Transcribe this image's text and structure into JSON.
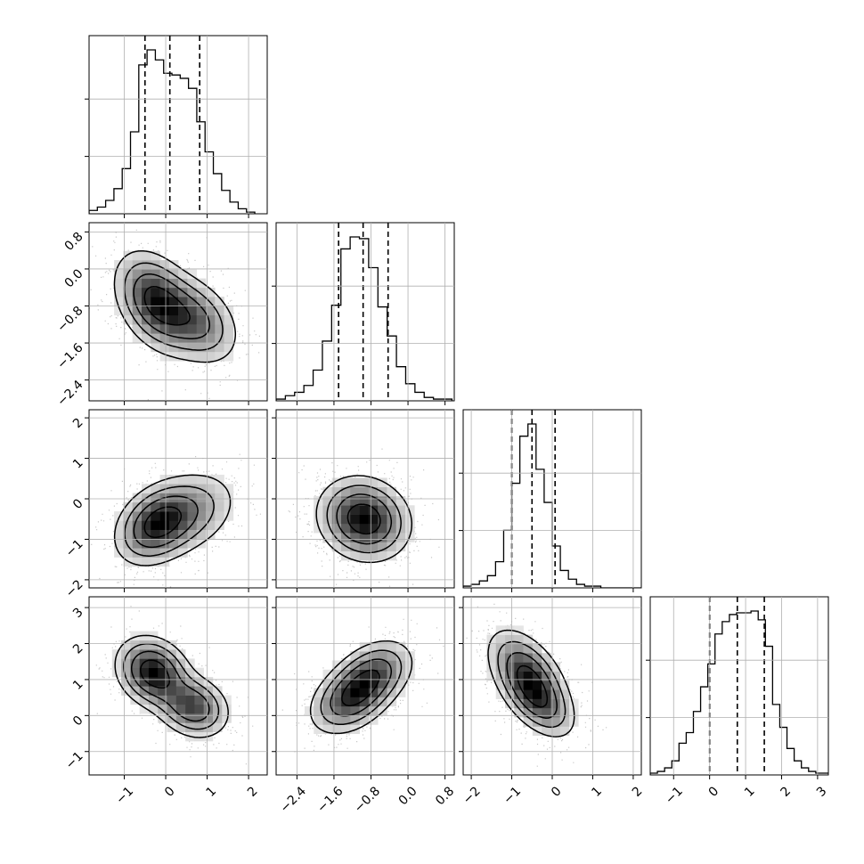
{
  "chart_data": {
    "type": "corner",
    "title": "",
    "n_params": 4,
    "params": [
      {
        "range": [
          -1.85,
          2.45
        ],
        "ticks": [
          -1,
          0,
          1,
          2
        ],
        "tick_labels": [
          "−1",
          "0",
          "1",
          "2"
        ],
        "histogram": {
          "edges_start": -1.85,
          "bin_width": 0.2,
          "counts": [
            0.02,
            0.04,
            0.08,
            0.15,
            0.27,
            0.49,
            0.89,
            0.98,
            0.92,
            0.84,
            0.83,
            0.81,
            0.75,
            0.55,
            0.37,
            0.24,
            0.14,
            0.07,
            0.03,
            0.01
          ]
        },
        "quantiles": [
          -0.5,
          0.1,
          0.82
        ]
      },
      {
        "range": [
          -2.85,
          1.0
        ],
        "ticks": [
          -2.4,
          -1.6,
          -0.8,
          0.0,
          0.8
        ],
        "tick_labels": [
          "−2.4",
          "−1.6",
          "−0.8",
          "0.0",
          "0.8"
        ],
        "histogram": {
          "edges_start": -2.85,
          "bin_width": 0.2,
          "counts": [
            0.01,
            0.03,
            0.05,
            0.09,
            0.18,
            0.35,
            0.56,
            0.89,
            0.96,
            0.95,
            0.78,
            0.55,
            0.38,
            0.2,
            0.1,
            0.05,
            0.02,
            0.01,
            0.01
          ]
        },
        "quantiles": [
          -1.5,
          -0.97,
          -0.43
        ]
      },
      {
        "range": [
          -2.2,
          2.2
        ],
        "ticks": [
          -2,
          -1,
          0,
          1,
          2
        ],
        "tick_labels": [
          "−2",
          "−1",
          "0",
          "1",
          "2"
        ],
        "histogram": {
          "edges_start": -2.2,
          "bin_width": 0.2,
          "counts": [
            0.01,
            0.02,
            0.04,
            0.07,
            0.15,
            0.33,
            0.6,
            0.87,
            0.94,
            0.68,
            0.49,
            0.24,
            0.1,
            0.05,
            0.02,
            0.01,
            0.01,
            0,
            0,
            0,
            0,
            0
          ]
        },
        "quantiles": [
          -1.0,
          -0.5,
          0.07
        ]
      },
      {
        "range": [
          -1.65,
          3.3
        ],
        "ticks": [
          -1,
          0,
          1,
          2,
          3
        ],
        "tick_labels": [
          "−1",
          "0",
          "1",
          "2",
          "3"
        ],
        "histogram": {
          "edges_start": -1.65,
          "bin_width": 0.2,
          "counts": [
            0.01,
            0.02,
            0.04,
            0.08,
            0.18,
            0.24,
            0.36,
            0.5,
            0.63,
            0.8,
            0.87,
            0.91,
            0.92,
            0.92,
            0.93,
            0.88,
            0.73,
            0.4,
            0.27,
            0.15,
            0.08,
            0.04,
            0.02,
            0.01,
            0.01
          ]
        },
        "quantiles": [
          0.0,
          0.77,
          1.52
        ]
      }
    ],
    "pairs": [
      {
        "row": 1,
        "col": 0,
        "modes": [
          [
            -0.25,
            -0.7,
            0.5,
            0.55,
            1.0
          ],
          [
            0.7,
            -1.1,
            0.55,
            0.5,
            0.7
          ]
        ],
        "rho": -0.35
      },
      {
        "row": 2,
        "col": 0,
        "modes": [
          [
            -0.25,
            -0.65,
            0.5,
            0.5,
            1.0
          ],
          [
            0.5,
            -0.35,
            0.65,
            0.55,
            0.6
          ]
        ],
        "rho": 0.3
      },
      {
        "row": 2,
        "col": 1,
        "modes": [
          [
            -0.95,
            -0.5,
            0.5,
            0.52,
            1.0
          ]
        ],
        "rho": -0.12
      },
      {
        "row": 3,
        "col": 0,
        "modes": [
          [
            -0.3,
            1.2,
            0.45,
            0.5,
            1.0
          ],
          [
            0.65,
            0.25,
            0.45,
            0.45,
            0.75
          ]
        ],
        "rho": -0.2
      },
      {
        "row": 3,
        "col": 1,
        "modes": [
          [
            -0.75,
            1.15,
            0.45,
            0.5,
            0.9
          ],
          [
            -1.25,
            0.45,
            0.45,
            0.5,
            1.0
          ]
        ],
        "rho": 0.35
      },
      {
        "row": 3,
        "col": 2,
        "modes": [
          [
            -0.6,
            1.1,
            0.5,
            0.65,
            1.0
          ],
          [
            -0.3,
            0.3,
            0.45,
            0.5,
            0.55
          ]
        ],
        "rho": -0.5
      }
    ],
    "contour_levels": [
      0.12,
      0.28,
      0.5,
      0.78
    ],
    "grid": true,
    "colors": {
      "line": "#000000",
      "grid": "#b0b0b0",
      "density": "#000000"
    }
  }
}
